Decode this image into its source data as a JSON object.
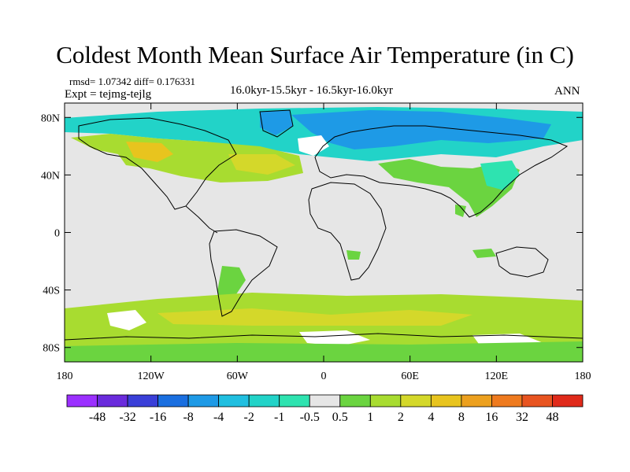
{
  "title": "Coldest Month Mean Surface Air Temperature (in C)",
  "stats_text": "rmsd= 1.07342 diff= 0.176331",
  "expt_text": "Expt = tejmg-tejlg",
  "period_text": "16.0kyr-15.5kyr - 16.5kyr-16.0kyr",
  "season_text": "ANN",
  "lat_ticks": [
    {
      "label": "80N",
      "value": 80
    },
    {
      "label": "40N",
      "value": 40
    },
    {
      "label": "0",
      "value": 0
    },
    {
      "label": "40S",
      "value": -40
    },
    {
      "label": "80S",
      "value": -80
    }
  ],
  "lon_ticks": [
    {
      "label": "180",
      "value": -180
    },
    {
      "label": "120W",
      "value": -120
    },
    {
      "label": "60W",
      "value": -60
    },
    {
      "label": "0",
      "value": 0
    },
    {
      "label": "60E",
      "value": 60
    },
    {
      "label": "120E",
      "value": 120
    },
    {
      "label": "180",
      "value": 180
    }
  ],
  "colorbar": {
    "colors": [
      "#9b30ff",
      "#6a2bdc",
      "#3a3fd8",
      "#1a6fe0",
      "#1e9ae6",
      "#20bfe0",
      "#22d3c8",
      "#2ee3b0",
      "#e6e6e6",
      "#6bd440",
      "#a8dc30",
      "#d4d82a",
      "#e8c41e",
      "#eca01e",
      "#ee7a1e",
      "#e85420",
      "#e02a1a"
    ],
    "labels": [
      "-48",
      "-32",
      "-16",
      "-8",
      "-4",
      "-2",
      "-1",
      "-0.5",
      "0.5",
      "1",
      "2",
      "4",
      "8",
      "16",
      "32",
      "48"
    ]
  },
  "field_colors": {
    "background": "#e6e6e6",
    "cool_light": "#22d3c8",
    "cool": "#1e9ae6",
    "cool_teal": "#2ee3b0",
    "warm_light": "#6bd440",
    "warm": "#a8dc30",
    "warm_yellow": "#d4d82a",
    "warm_orange": "#e8c41e",
    "white": "#ffffff"
  }
}
